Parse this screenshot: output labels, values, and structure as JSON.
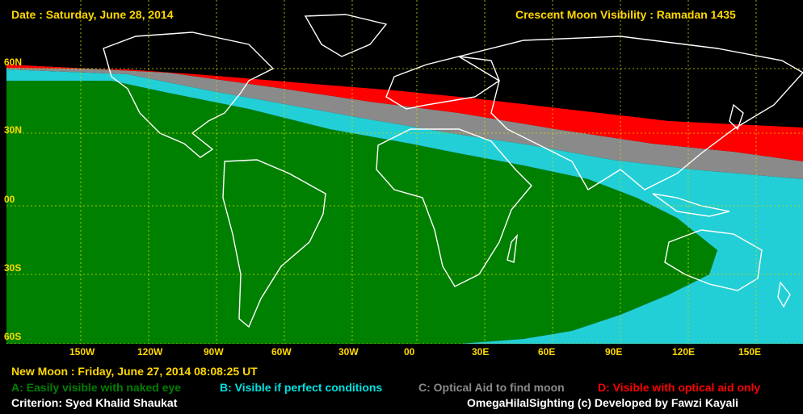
{
  "header": {
    "date": "Date : Saturday, June 28, 2014",
    "title": "Crescent Moon Visibility : Ramadan  1435"
  },
  "footer": {
    "new_moon": "New Moon : Friday, June 27, 2014  08:08:25  UT",
    "criterion": "Criterion: Syed Khalid Shaukat",
    "credit": "OmegaHilalSighting  (c)  Developed by Fawzi Kayali"
  },
  "legend": [
    {
      "label": "A: Easily visible with naked eye",
      "color": "#008000"
    },
    {
      "label": "B: Visible if perfect conditions",
      "color": "#00e0e0"
    },
    {
      "label": "C: Optical Aid to find moon",
      "color": "#8a8a8a"
    },
    {
      "label": "D: Visible with optical aid only",
      "color": "#ff0000"
    }
  ],
  "lat_labels": [
    "60N",
    "30N",
    "00",
    "30S",
    "60S"
  ],
  "lon_labels": [
    "150W",
    "120W",
    "90W",
    "60W",
    "30W",
    "00",
    "30E",
    "60E",
    "90E",
    "120E",
    "150E"
  ],
  "colors": {
    "zone_a": "#008000",
    "zone_b": "#22cfd6",
    "zone_c": "#8a8a8a",
    "zone_d": "#ff0000",
    "grid": "#d8d800",
    "label": "#ffd800"
  }
}
